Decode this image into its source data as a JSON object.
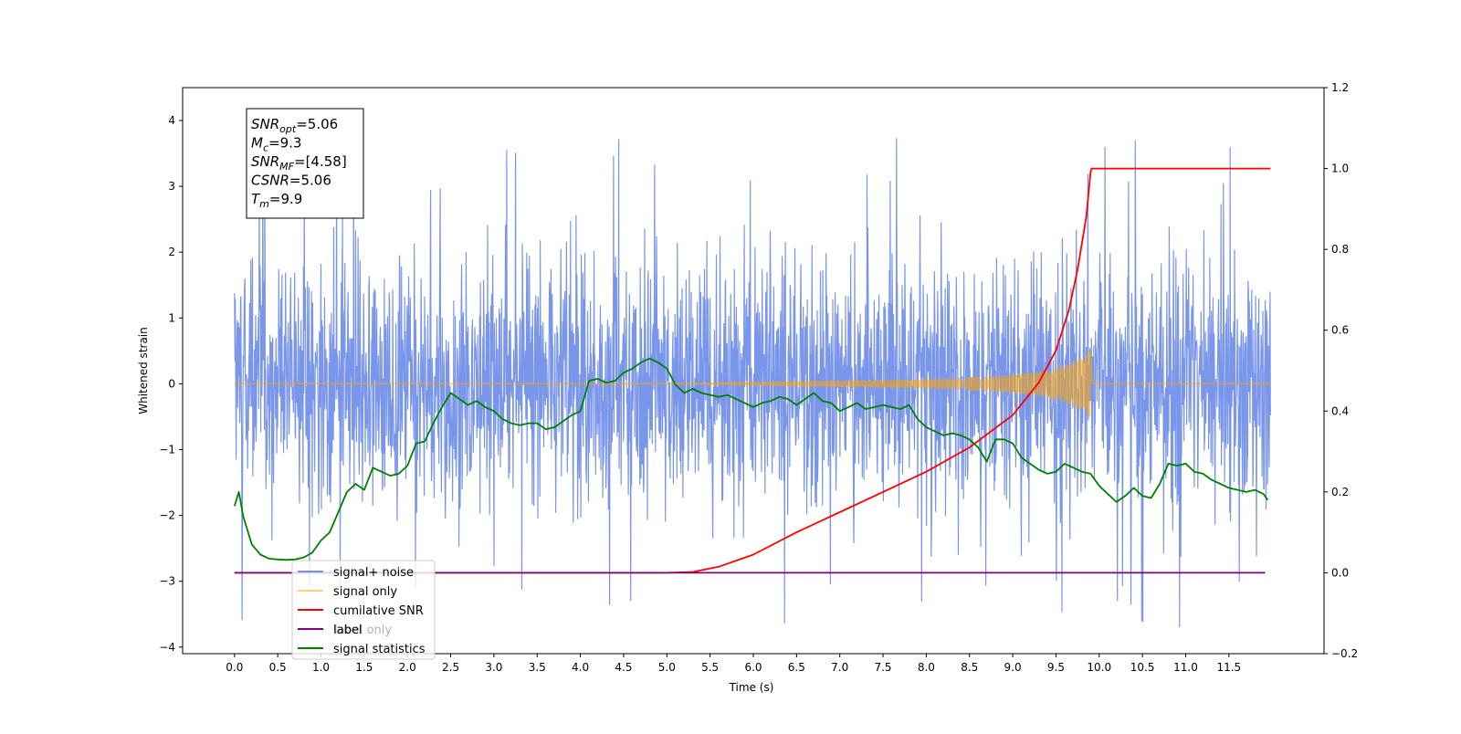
{
  "chart_data": {
    "type": "line",
    "title": "",
    "xlabel": "Time (s)",
    "ylabel": "Whitened strain",
    "y2label": "",
    "xlim": [
      -0.6,
      12.6
    ],
    "ylim": [
      -4.1,
      4.5
    ],
    "y2lim": [
      -0.2,
      1.2
    ],
    "grid": false,
    "legend_position": "lower-left",
    "x_ticks": [
      0.0,
      0.5,
      1.0,
      1.5,
      2.0,
      2.5,
      3.0,
      3.5,
      4.0,
      4.5,
      5.0,
      5.5,
      6.0,
      6.5,
      7.0,
      7.5,
      8.0,
      8.5,
      9.0,
      9.5,
      10.0,
      10.5,
      11.0,
      11.5
    ],
    "x_tick_labels": [
      "0.0",
      "0.5",
      "1.0",
      "1.5",
      "2.0",
      "2.5",
      "3.0",
      "3.5",
      "4.0",
      "4.5",
      "5.0",
      "5.5",
      "6.0",
      "6.5",
      "7.0",
      "7.5",
      "8.0",
      "8.5",
      "9.0",
      "9.5",
      "10.0",
      "10.5",
      "11.0",
      "11.5"
    ],
    "y_ticks": [
      -4,
      -3,
      -2,
      -1,
      0,
      1,
      2,
      3,
      4
    ],
    "y_tick_labels": [
      "−4",
      "−3",
      "−2",
      "−1",
      "0",
      "1",
      "2",
      "3",
      "4"
    ],
    "y2_ticks": [
      -0.2,
      0.0,
      0.2,
      0.4,
      0.6,
      0.8,
      1.0,
      1.2
    ],
    "y2_tick_labels": [
      "−0.2",
      "0.0",
      "0.2",
      "0.4",
      "0.6",
      "0.8",
      "1.0",
      "1.2"
    ],
    "annotation": {
      "lines": [
        {
          "base": "SNR",
          "sub": "opt",
          "value": "=5.06"
        },
        {
          "base": "M",
          "sub": "c",
          "value": "=9.3"
        },
        {
          "base": "SNR",
          "sub": "MF",
          "value": "=[4.58]"
        },
        {
          "base": "CSNR",
          "sub": "",
          "value": "=5.06"
        },
        {
          "base": "T",
          "sub": "m",
          "value": "=9.9"
        }
      ]
    },
    "series": [
      {
        "name": "signal+ noise",
        "axis": "left",
        "color": "#4169e1",
        "opacity": 0.7,
        "kind": "noise",
        "x_range": [
          0.0,
          11.98
        ],
        "envelope": {
          "center": 0.0,
          "typical_low": -1.7,
          "typical_high": 1.7,
          "max": 4.12,
          "min": -3.72
        }
      },
      {
        "name": "signal only",
        "axis": "left",
        "color": "#ffa500",
        "opacity": 0.55,
        "kind": "chirp",
        "x_range": [
          0.0,
          11.98
        ],
        "merger_time": 9.9,
        "amplitude_envelope": {
          "x": [
            0.0,
            5.0,
            6.0,
            7.0,
            8.0,
            8.5,
            9.0,
            9.3,
            9.6,
            9.8,
            9.9,
            9.92,
            11.98
          ],
          "y": [
            0.0,
            0.0,
            0.02,
            0.04,
            0.06,
            0.09,
            0.13,
            0.18,
            0.27,
            0.4,
            0.52,
            0.0,
            0.0
          ]
        }
      },
      {
        "name": "cumilative SNR",
        "axis": "right",
        "color": "#ff0000",
        "x": [
          0.0,
          4.0,
          5.0,
          5.3,
          5.6,
          6.0,
          6.5,
          7.0,
          7.5,
          8.0,
          8.5,
          9.0,
          9.3,
          9.5,
          9.65,
          9.75,
          9.85,
          9.9,
          9.91,
          11.98
        ],
        "values": [
          0.0,
          0.0,
          0.0,
          0.002,
          0.015,
          0.045,
          0.1,
          0.15,
          0.2,
          0.25,
          0.31,
          0.39,
          0.47,
          0.55,
          0.65,
          0.75,
          0.88,
          0.99,
          1.0,
          1.0
        ]
      },
      {
        "name": "label",
        "axis": "right",
        "color": "#800080",
        "x": [
          0.0,
          11.92
        ],
        "values": [
          0.0,
          0.0
        ]
      },
      {
        "name": "signal statistics",
        "axis": "right",
        "color": "#008000",
        "x": [
          0.0,
          0.05,
          0.1,
          0.2,
          0.3,
          0.4,
          0.5,
          0.6,
          0.7,
          0.8,
          0.9,
          1.0,
          1.1,
          1.2,
          1.3,
          1.4,
          1.5,
          1.6,
          1.7,
          1.8,
          1.9,
          2.0,
          2.1,
          2.2,
          2.3,
          2.4,
          2.5,
          2.6,
          2.7,
          2.8,
          2.9,
          3.0,
          3.1,
          3.2,
          3.3,
          3.4,
          3.5,
          3.6,
          3.7,
          3.8,
          3.9,
          4.0,
          4.1,
          4.2,
          4.3,
          4.4,
          4.5,
          4.6,
          4.7,
          4.8,
          4.9,
          5.0,
          5.1,
          5.2,
          5.3,
          5.4,
          5.5,
          5.6,
          5.7,
          5.8,
          5.9,
          6.0,
          6.1,
          6.2,
          6.3,
          6.4,
          6.5,
          6.6,
          6.7,
          6.8,
          6.9,
          7.0,
          7.1,
          7.2,
          7.3,
          7.4,
          7.5,
          7.6,
          7.7,
          7.8,
          7.9,
          8.0,
          8.1,
          8.2,
          8.3,
          8.4,
          8.5,
          8.6,
          8.7,
          8.8,
          8.9,
          9.0,
          9.1,
          9.2,
          9.3,
          9.4,
          9.5,
          9.6,
          9.7,
          9.8,
          9.9,
          10.0,
          10.1,
          10.2,
          10.3,
          10.4,
          10.5,
          10.6,
          10.7,
          10.8,
          10.9,
          11.0,
          11.1,
          11.2,
          11.3,
          11.4,
          11.5,
          11.6,
          11.7,
          11.8,
          11.9,
          11.95
        ],
        "values": [
          0.165,
          0.2,
          0.14,
          0.07,
          0.045,
          0.035,
          0.033,
          0.032,
          0.033,
          0.038,
          0.05,
          0.08,
          0.1,
          0.15,
          0.2,
          0.22,
          0.205,
          0.26,
          0.25,
          0.24,
          0.245,
          0.265,
          0.32,
          0.325,
          0.37,
          0.41,
          0.445,
          0.43,
          0.415,
          0.425,
          0.41,
          0.4,
          0.38,
          0.37,
          0.365,
          0.37,
          0.37,
          0.355,
          0.36,
          0.375,
          0.39,
          0.4,
          0.475,
          0.48,
          0.47,
          0.475,
          0.495,
          0.505,
          0.52,
          0.53,
          0.52,
          0.505,
          0.465,
          0.445,
          0.455,
          0.445,
          0.44,
          0.435,
          0.44,
          0.43,
          0.42,
          0.41,
          0.42,
          0.425,
          0.435,
          0.43,
          0.415,
          0.43,
          0.445,
          0.425,
          0.42,
          0.4,
          0.41,
          0.42,
          0.405,
          0.41,
          0.415,
          0.41,
          0.405,
          0.415,
          0.38,
          0.36,
          0.35,
          0.34,
          0.345,
          0.34,
          0.33,
          0.31,
          0.275,
          0.33,
          0.33,
          0.32,
          0.285,
          0.27,
          0.255,
          0.245,
          0.25,
          0.27,
          0.26,
          0.25,
          0.245,
          0.215,
          0.195,
          0.175,
          0.19,
          0.21,
          0.19,
          0.185,
          0.22,
          0.27,
          0.265,
          0.27,
          0.25,
          0.245,
          0.23,
          0.22,
          0.21,
          0.205,
          0.2,
          0.205,
          0.195,
          0.18
        ]
      }
    ],
    "legend": [
      {
        "label": "signal+ noise",
        "color": "#4169e1",
        "opacity": 0.7
      },
      {
        "label": "signal only",
        "color": "#ffa500",
        "opacity": 0.55
      },
      {
        "label": "cumilative SNR",
        "color": "#ff0000",
        "opacity": 1
      },
      {
        "label": "label",
        "color": "#800080",
        "opacity": 1
      },
      {
        "label": "signal statistics",
        "color": "#008000",
        "opacity": 1
      }
    ],
    "occluded_text": "label only"
  }
}
